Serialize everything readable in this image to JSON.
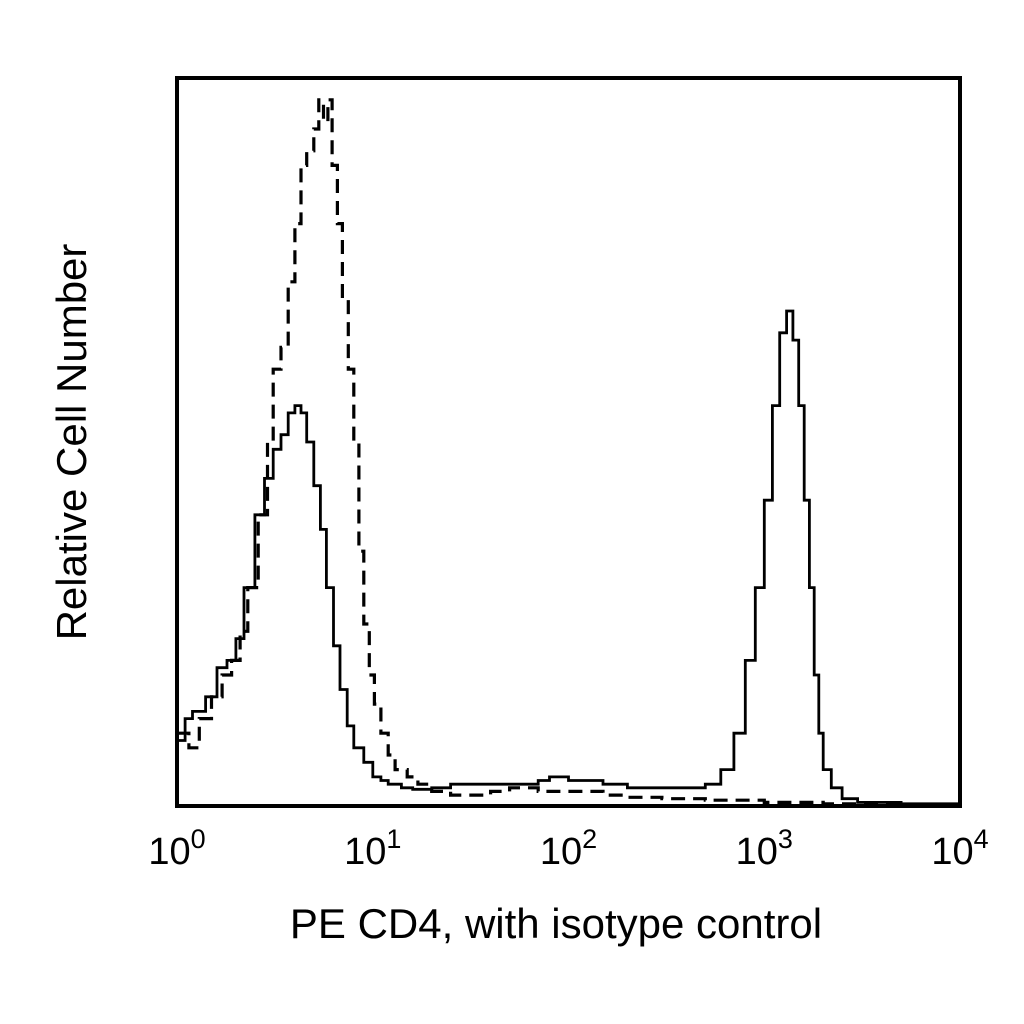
{
  "chart_data": {
    "type": "line",
    "title": "",
    "xlabel": "PE CD4, with isotype control",
    "ylabel": "Relative Cell Number",
    "x_scale": "log",
    "xlim": [
      1,
      10000
    ],
    "ylim": [
      0,
      100
    ],
    "x_ticks": [
      {
        "base": "10",
        "exp": "0",
        "value": 1
      },
      {
        "base": "10",
        "exp": "1",
        "value": 10
      },
      {
        "base": "10",
        "exp": "2",
        "value": 100
      },
      {
        "base": "10",
        "exp": "3",
        "value": 1000
      },
      {
        "base": "10",
        "exp": "4",
        "value": 10000
      }
    ],
    "grid": false,
    "legend": "none",
    "series": [
      {
        "style": "dashed",
        "color": "#000000",
        "x": [
          1.0,
          1.15,
          1.3,
          1.5,
          1.7,
          1.9,
          2.1,
          2.3,
          2.6,
          2.9,
          3.1,
          3.4,
          3.7,
          4.0,
          4.3,
          4.6,
          5.0,
          5.3,
          5.6,
          5.9,
          6.2,
          6.6,
          7.0,
          7.5,
          8.0,
          8.5,
          9.0,
          9.6,
          10.2,
          11,
          12,
          13,
          15,
          17,
          20,
          25,
          30,
          40,
          50,
          70,
          100,
          150,
          200,
          300,
          500,
          1000,
          2000,
          5000,
          10000
        ],
        "y": [
          10,
          8,
          12,
          15,
          18,
          20,
          24,
          30,
          40,
          50,
          60,
          63,
          72,
          80,
          88,
          90,
          93,
          97,
          94,
          97,
          88,
          80,
          70,
          60,
          50,
          35,
          25,
          18,
          14,
          10,
          7,
          5,
          4,
          3,
          2,
          1.5,
          1.5,
          2,
          2.5,
          2,
          2,
          1.5,
          1.2,
          1,
          0.8,
          0.5,
          0.3,
          0.2,
          0.2
        ]
      },
      {
        "style": "solid",
        "color": "#000000",
        "x": [
          1.0,
          1.1,
          1.2,
          1.4,
          1.6,
          1.8,
          2.0,
          2.2,
          2.5,
          2.8,
          3.1,
          3.4,
          3.7,
          4.0,
          4.3,
          4.6,
          5.0,
          5.4,
          5.8,
          6.3,
          6.8,
          7.4,
          8.0,
          9.0,
          10,
          11,
          12,
          14,
          16,
          20,
          25,
          30,
          40,
          50,
          70,
          80,
          100,
          150,
          200,
          300,
          400,
          500,
          600,
          700,
          800,
          900,
          1000,
          1100,
          1200,
          1300,
          1400,
          1500,
          1600,
          1700,
          1800,
          1900,
          2000,
          2200,
          2500,
          3000,
          5000,
          10000
        ],
        "y": [
          9,
          12,
          13,
          15,
          19,
          20,
          23,
          30,
          40,
          45,
          49,
          51,
          54,
          55,
          54,
          50,
          44,
          38,
          30,
          22,
          16,
          11,
          8,
          6,
          4,
          3.5,
          3,
          2.5,
          2.3,
          2.5,
          3,
          3,
          3,
          3,
          3.5,
          4,
          3.5,
          3,
          2.5,
          2.5,
          2.5,
          3,
          5,
          10,
          20,
          30,
          42,
          55,
          65,
          68,
          64,
          55,
          42,
          30,
          18,
          10,
          5,
          2.5,
          1,
          0.5,
          0.3,
          0.3
        ]
      }
    ]
  }
}
